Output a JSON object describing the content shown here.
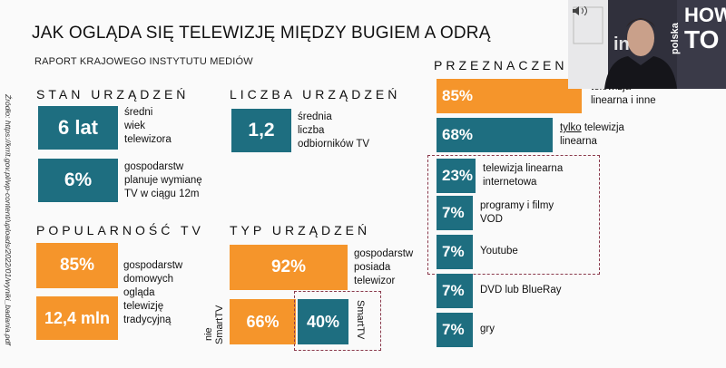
{
  "header": {
    "title": "JAK OGLĄDA SIĘ TELEWIZJĘ MIĘDZY BUGIEM A ODRĄ",
    "subtitle": "RAPORT KRAJOWEGO INSTYTUTU MEDIÓW"
  },
  "source": "Źródło: https://krrit.gov.pl/wp-content/uploads/2022/01/wyniki_badania.pdf",
  "stan": {
    "heading": "STAN URZĄDZEŃ",
    "box1_value": "6 lat",
    "box1_label": [
      "średni",
      "wiek",
      "telewizora"
    ],
    "box2_value": "6%",
    "box2_label": [
      "gospodarstw",
      "planuje wymianę",
      "TV w ciągu 12m"
    ]
  },
  "liczba": {
    "heading": "LICZBA URZĄDZEŃ",
    "value": "1,2",
    "label": [
      "średnia",
      "liczba",
      "odbiorników TV"
    ]
  },
  "popularnosc": {
    "heading": "POPULARNOŚĆ TV",
    "box1_value": "85%",
    "box2_value": "12,4 mln",
    "label": [
      "gospodarstw",
      "domowych",
      "ogląda",
      "telewizję",
      "tradycyjną"
    ]
  },
  "typ": {
    "heading": "TYP URZĄDZEŃ",
    "box_value": "92%",
    "box_label": [
      "gospodarstw",
      "posiada",
      "telewizor"
    ],
    "nie_label": [
      "nie",
      "SmartTV"
    ],
    "nie_value": "66%",
    "smart_value": "40%",
    "smart_label": "SmartTV"
  },
  "chart_data": {
    "type": "bar",
    "title": "PRZEZNACZENIE",
    "colors": {
      "teal": "#1e6e80",
      "orange": "#f5952b"
    },
    "bars": [
      {
        "value": 85,
        "display": "85%",
        "label": "telewizja linearna i inne",
        "label_lines": [
          "telewizja",
          "linearna i inne"
        ],
        "color": "orange"
      },
      {
        "value": 68,
        "display": "68%",
        "label_prefix": "tylko",
        "label_rest": " telewizja",
        "label_line2": "linearna",
        "color": "teal"
      },
      {
        "value": 23,
        "display": "23%",
        "label_lines": [
          "telewizja linearna",
          "internetowa"
        ],
        "color": "teal"
      },
      {
        "value": 7,
        "display": "7%",
        "label_lines": [
          "programy i filmy",
          "VOD"
        ],
        "color": "teal"
      },
      {
        "value": 7,
        "display": "7%",
        "label_lines": [
          "Youtube"
        ],
        "color": "teal"
      },
      {
        "value": 7,
        "display": "7%",
        "label_lines": [
          "DVD lub BlueRay"
        ],
        "color": "teal"
      },
      {
        "value": 7,
        "display": "7%",
        "label_lines": [
          "gry"
        ],
        "color": "teal"
      }
    ]
  },
  "video": {
    "overlay_text_1": "polska",
    "overlay_text_2": "HOW",
    "overlay_text_3": "TO",
    "overlay_text_4": "in"
  }
}
